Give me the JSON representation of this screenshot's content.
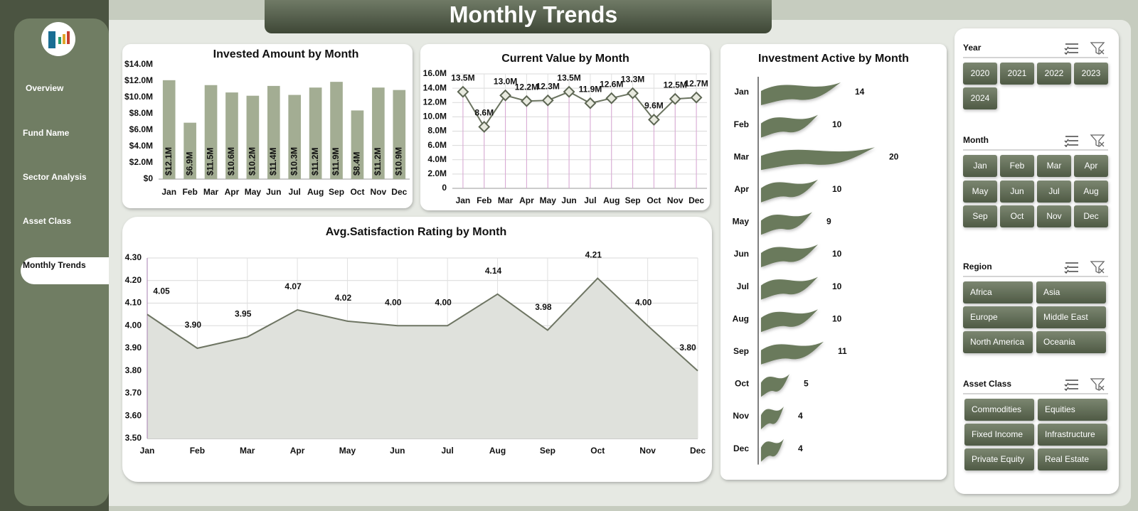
{
  "header": {
    "title": "Monthly Trends"
  },
  "nav": {
    "items": [
      "Overview",
      "Fund Name",
      "Sector Analysis",
      "Asset Class",
      "Monthly Trends"
    ],
    "active": 4
  },
  "chart_data": [
    {
      "type": "bar",
      "orientation": "vertical",
      "title": "Invested Amount by Month",
      "categories": [
        "Jan",
        "Feb",
        "Mar",
        "Apr",
        "May",
        "Jun",
        "Jul",
        "Aug",
        "Sep",
        "Oct",
        "Nov",
        "Dec"
      ],
      "values": [
        12100000,
        6900000,
        11500000,
        10600000,
        10200000,
        11400000,
        10300000,
        11200000,
        11900000,
        8400000,
        11200000,
        10900000
      ],
      "value_labels": [
        "$12.1M",
        "$6.9M",
        "$11.5M",
        "$10.6M",
        "$10.2M",
        "$11.4M",
        "$10.3M",
        "$11.2M",
        "$11.9M",
        "$8.4M",
        "$11.2M",
        "$10.9M"
      ],
      "color": "#a3ad93",
      "grid": false,
      "ylim": [
        0,
        14000000
      ],
      "yticks": [
        {
          "value": 0,
          "label": "$0"
        },
        {
          "value": 2000000,
          "label": "$2.0M"
        },
        {
          "value": 4000000,
          "label": "$4.0M"
        },
        {
          "value": 6000000,
          "label": "$6.0M"
        },
        {
          "value": 8000000,
          "label": "$8.0M"
        },
        {
          "value": 10000000,
          "label": "$10.0M"
        },
        {
          "value": 12000000,
          "label": "$12.0M"
        },
        {
          "value": 14000000,
          "label": "$14.0M"
        }
      ]
    },
    {
      "type": "line",
      "title": "Current Value by Month",
      "categories": [
        "Jan",
        "Feb",
        "Mar",
        "Apr",
        "May",
        "Jun",
        "Jul",
        "Aug",
        "Sep",
        "Oct",
        "Nov",
        "Dec"
      ],
      "values": [
        13500000,
        8600000,
        13000000,
        12200000,
        12300000,
        13500000,
        11900000,
        12600000,
        13300000,
        9600000,
        12500000,
        12700000
      ],
      "value_labels": [
        "13.5M",
        "8.6M",
        "13.0M",
        "12.2M",
        "12.3M",
        "13.5M",
        "11.9M",
        "12.6M",
        "13.3M",
        "9.6M",
        "12.5M",
        "12.7M"
      ],
      "color": "#6b7460",
      "drop_line_color": "#d9a6d4",
      "grid": true,
      "ylim": [
        0,
        16000000
      ],
      "yticks": [
        0,
        {
          "value": 2000000,
          "label": "2.0M"
        },
        {
          "value": 4000000,
          "label": "4.0M"
        },
        {
          "value": 6000000,
          "label": "6.0M"
        },
        {
          "value": 8000000,
          "label": "8.0M"
        },
        {
          "value": 10000000,
          "label": "10.0M"
        },
        {
          "value": 12000000,
          "label": "12.0M"
        },
        {
          "value": 14000000,
          "label": "14.0M"
        },
        {
          "value": 16000000,
          "label": "16.0M"
        }
      ]
    },
    {
      "type": "area",
      "title": "Avg.Satisfaction Rating by Month",
      "categories": [
        "Jan",
        "Feb",
        "Mar",
        "Apr",
        "May",
        "Jun",
        "Jul",
        "Aug",
        "Sep",
        "Oct",
        "Nov",
        "Dec"
      ],
      "values": [
        4.05,
        3.9,
        3.95,
        4.07,
        4.02,
        4.0,
        4.0,
        4.14,
        3.98,
        4.21,
        4.0,
        3.8
      ],
      "value_labels": [
        "4.05",
        "3.90",
        "3.95",
        "4.07",
        "4.02",
        "4.00",
        "4.00",
        "4.14",
        "3.98",
        "4.21",
        "4.00",
        "3.80"
      ],
      "color": "#6e7563",
      "fill": "#dfe1dc",
      "grid": true,
      "ylim": [
        3.5,
        4.3
      ],
      "yticks": [
        {
          "value": 3.5,
          "label": "3.50"
        },
        {
          "value": 3.6,
          "label": "3.60"
        },
        {
          "value": 3.7,
          "label": "3.70"
        },
        {
          "value": 3.8,
          "label": "3.80"
        },
        {
          "value": 3.9,
          "label": "3.90"
        },
        {
          "value": 4.0,
          "label": "4.00"
        },
        {
          "value": 4.1,
          "label": "4.10"
        },
        {
          "value": 4.2,
          "label": "4.20"
        },
        {
          "value": 4.3,
          "label": "4.30"
        }
      ]
    },
    {
      "type": "bar",
      "orientation": "horizontal",
      "title": "Investment Active by Month",
      "categories": [
        "Jan",
        "Feb",
        "Mar",
        "Apr",
        "May",
        "Jun",
        "Jul",
        "Aug",
        "Sep",
        "Oct",
        "Nov",
        "Dec"
      ],
      "values": [
        14,
        10,
        20,
        10,
        9,
        10,
        10,
        10,
        11,
        5,
        4,
        4
      ],
      "color": "#6b7a5c"
    }
  ],
  "slicers": [
    {
      "title": "Year",
      "items": [
        "2020",
        "2021",
        "2022",
        "2023",
        "2024"
      ]
    },
    {
      "title": "Month",
      "items": [
        "Jan",
        "Feb",
        "Mar",
        "Apr",
        "May",
        "Jun",
        "Jul",
        "Aug",
        "Sep",
        "Oct",
        "Nov",
        "Dec"
      ]
    },
    {
      "title": "Region",
      "items": [
        "Africa",
        "Asia",
        "Europe",
        "Middle East",
        "North America",
        "Oceania"
      ]
    },
    {
      "title": "Asset Class",
      "items": [
        "Commodities",
        "Equities",
        "Fixed Income",
        "Infrastructure",
        "Private Equity",
        "Real Estate"
      ]
    }
  ]
}
